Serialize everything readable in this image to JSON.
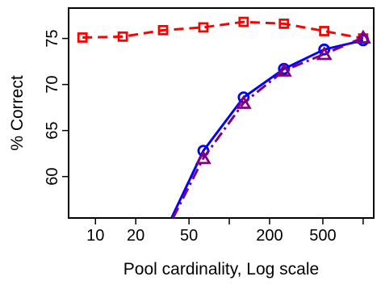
{
  "chart_data": {
    "type": "line",
    "title": "",
    "xlabel": "Pool cardinality, Log scale",
    "ylabel": "% Correct",
    "x_scale": "log",
    "xlim": [
      6.3,
      1200
    ],
    "ylim": [
      55.5,
      78.3
    ],
    "x_ticks": [
      {
        "value": 10,
        "label": "10"
      },
      {
        "value": 20,
        "label": "20"
      },
      {
        "value": 50,
        "label": "50"
      },
      {
        "value": 100,
        "label": ""
      },
      {
        "value": 200,
        "label": "200"
      },
      {
        "value": 500,
        "label": "500"
      },
      {
        "value": 1000,
        "label": ""
      }
    ],
    "y_ticks": [
      {
        "value": 60,
        "label": "60"
      },
      {
        "value": 65,
        "label": "65"
      },
      {
        "value": 70,
        "label": "70"
      },
      {
        "value": 75,
        "label": "75"
      }
    ],
    "grid": false,
    "legend": "none",
    "series": [
      {
        "color": "#ff0000",
        "line_style": "dashed",
        "marker": "square",
        "x": [
          8,
          16,
          32,
          64,
          128,
          256,
          512,
          1000
        ],
        "y": [
          75.1,
          75.2,
          75.9,
          76.2,
          76.8,
          76.6,
          75.8,
          75.0
        ]
      },
      {
        "color": "#0000ff",
        "line_style": "solid",
        "marker": "circle",
        "x": [
          64,
          128,
          256,
          512,
          1000
        ],
        "y": [
          62.8,
          68.6,
          71.7,
          73.8,
          74.8
        ],
        "extends_to": {
          "x": 37,
          "y": 55.5
        }
      },
      {
        "color": "#800080",
        "line_style": "dashdot",
        "marker": "triangle",
        "x": [
          64,
          128,
          256,
          512,
          1000
        ],
        "y": [
          62.0,
          68.0,
          71.5,
          73.3,
          75.1
        ],
        "extends_to": {
          "x": 38,
          "y": 55.5
        }
      }
    ]
  }
}
